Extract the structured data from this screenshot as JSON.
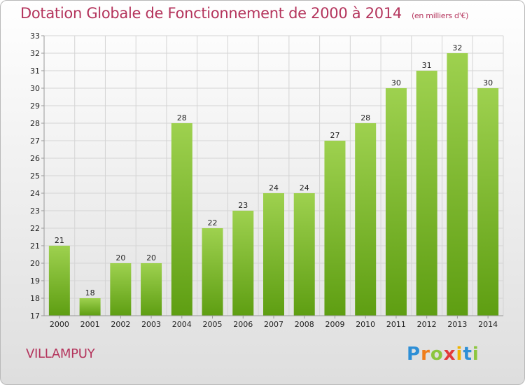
{
  "header": {
    "title": "Dotation Globale de Fonctionnement de 2000 à 2014",
    "unit": "(en milliers d'€)"
  },
  "footer": {
    "commune": "VILLAMPUY",
    "logo_letters": [
      "P",
      "r",
      "o",
      "x",
      "i",
      "t",
      "i"
    ],
    "logo_colors": [
      "#2e8fd6",
      "#f07d1a",
      "#8cc63f",
      "#e23a3a",
      "#f0b400",
      "#2e8fd6",
      "#8cc63f"
    ]
  },
  "chart_data": {
    "type": "bar",
    "title": "Dotation Globale de Fonctionnement de 2000 à 2014",
    "subtitle": "(en milliers d'€)",
    "categories": [
      "2000",
      "2001",
      "2002",
      "2003",
      "2004",
      "2005",
      "2006",
      "2007",
      "2008",
      "2009",
      "2010",
      "2011",
      "2012",
      "2013",
      "2014"
    ],
    "values": [
      21,
      18,
      20,
      20,
      28,
      22,
      23,
      24,
      24,
      27,
      28,
      30,
      31,
      32,
      30
    ],
    "ylim": [
      17,
      33
    ],
    "yticks": [
      17,
      18,
      19,
      20,
      21,
      22,
      23,
      24,
      25,
      26,
      27,
      28,
      29,
      30,
      31,
      32,
      33
    ],
    "grid": true,
    "bar_color_top": "#9ed14f",
    "bar_color_bottom": "#5e9e12"
  }
}
